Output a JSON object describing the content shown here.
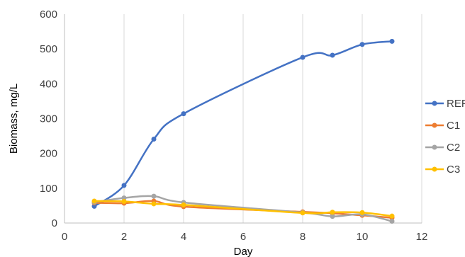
{
  "chart_data": {
    "type": "line",
    "title": "",
    "xlabel": "Day",
    "ylabel": "Biomass, mg/L",
    "xlim": [
      0,
      12
    ],
    "ylim": [
      0,
      600
    ],
    "xticks": [
      0,
      2,
      4,
      6,
      8,
      10,
      12
    ],
    "yticks": [
      0,
      100,
      200,
      300,
      400,
      500,
      600
    ],
    "grid": "vertical",
    "legend": "right",
    "smooth": true,
    "series": [
      {
        "name": "REF",
        "color": "#4472C4",
        "x": [
          1,
          2,
          3,
          4,
          8,
          9,
          10,
          11
        ],
        "y": [
          48,
          108,
          241,
          314,
          476,
          482,
          513,
          522
        ]
      },
      {
        "name": "C1",
        "color": "#ED7D31",
        "x": [
          1,
          2,
          3,
          4,
          8,
          9,
          10,
          11
        ],
        "y": [
          58,
          57,
          63,
          47,
          32,
          28,
          22,
          15
        ]
      },
      {
        "name": "C2",
        "color": "#A5A5A5",
        "x": [
          1,
          2,
          3,
          4,
          8,
          9,
          10,
          11
        ],
        "y": [
          60,
          72,
          77,
          59,
          30,
          19,
          25,
          5
        ]
      },
      {
        "name": "C3",
        "color": "#FFC000",
        "x": [
          1,
          2,
          3,
          4,
          8,
          9,
          10,
          11
        ],
        "y": [
          63,
          62,
          55,
          52,
          29,
          31,
          30,
          20
        ]
      }
    ]
  }
}
